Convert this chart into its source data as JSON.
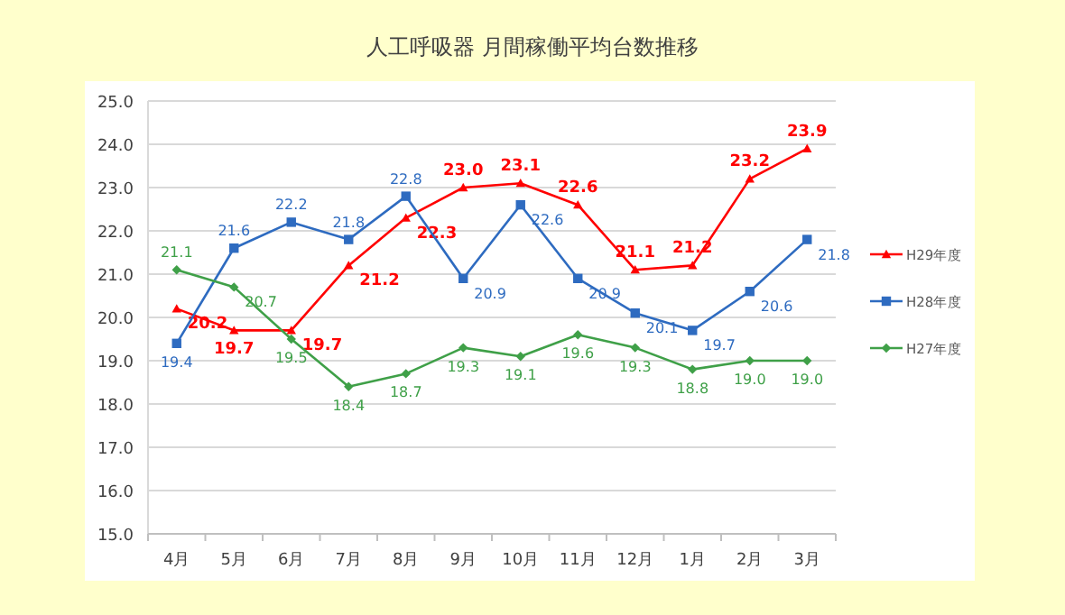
{
  "chart_data": {
    "type": "line",
    "title": "人工呼吸器 月間稼働平均台数推移",
    "categories": [
      "4月",
      "5月",
      "6月",
      "7月",
      "8月",
      "9月",
      "10月",
      "11月",
      "12月",
      "1月",
      "2月",
      "3月"
    ],
    "series": [
      {
        "name": "H29年度",
        "color": "#ff0000",
        "marker": "triangle",
        "values": [
          20.2,
          19.7,
          19.7,
          21.2,
          22.3,
          23.0,
          23.1,
          22.6,
          21.1,
          21.2,
          23.2,
          23.9
        ],
        "value_labels": [
          "20.2",
          "19.7",
          "19.7",
          "21.2",
          "22.3",
          "23.0",
          "23.1",
          "22.6",
          "21.1",
          "21.2",
          "23.2",
          "23.9"
        ]
      },
      {
        "name": "H28年度",
        "color": "#2e6bc0",
        "marker": "square",
        "values": [
          19.4,
          21.6,
          22.2,
          21.8,
          22.8,
          20.9,
          22.6,
          20.9,
          20.1,
          19.7,
          20.6,
          21.8
        ],
        "value_labels": [
          "19.4",
          "21.6",
          "22.2",
          "21.8",
          "22.8",
          "20.9",
          "22.6",
          "20.9",
          "20.1",
          "19.7",
          "20.6",
          "21.8"
        ]
      },
      {
        "name": "H27年度",
        "color": "#3fa048",
        "marker": "diamond",
        "values": [
          21.1,
          20.7,
          19.5,
          18.4,
          18.7,
          19.3,
          19.1,
          19.6,
          19.3,
          18.8,
          19.0,
          19.0
        ],
        "value_labels": [
          "21.1",
          "20.7",
          "19.5",
          "18.4",
          "18.7",
          "19.3",
          "19.1",
          "19.6",
          "19.3",
          "18.8",
          "19.0",
          "19.0"
        ]
      }
    ],
    "ylim": [
      15,
      25
    ],
    "yticks": [
      {
        "value": 15,
        "label": "15.0"
      },
      {
        "value": 16,
        "label": "16.0"
      },
      {
        "value": 17,
        "label": "17.0"
      },
      {
        "value": 18,
        "label": "18.0"
      },
      {
        "value": 19,
        "label": "19.0"
      },
      {
        "value": 20,
        "label": "20.0"
      },
      {
        "value": 21,
        "label": "21.0"
      },
      {
        "value": 22,
        "label": "22.0"
      },
      {
        "value": 23,
        "label": "23.0"
      },
      {
        "value": 24,
        "label": "24.0"
      },
      {
        "value": 25,
        "label": "25.0"
      }
    ],
    "grid": "y",
    "legend": "right"
  }
}
